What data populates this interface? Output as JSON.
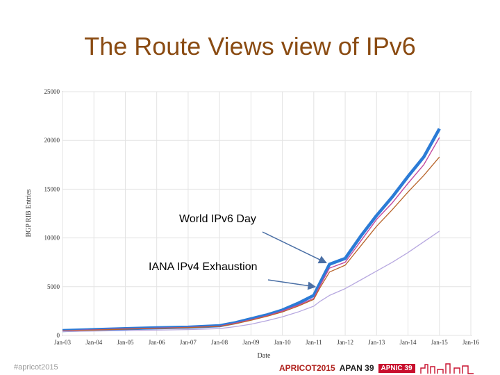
{
  "slide": {
    "title": "The Route Views view of IPv6",
    "footer_handle": "#apricot2015"
  },
  "logos": {
    "apricot": "APRICOT2015",
    "apan": "APAN 39",
    "apnic": "APNIC 39"
  },
  "colors": {
    "title": "#8a4b12",
    "arrow": "#4a6fa5",
    "main_band": "#2b7bd6",
    "low_series": "#b7a8e0"
  },
  "chart_data": {
    "type": "line",
    "title": "",
    "xlabel": "Date",
    "ylabel": "BGP RIB Entries",
    "ylim": [
      0,
      25000
    ],
    "xlim": [
      "2003-01",
      "2016-01"
    ],
    "yticks": [
      0,
      5000,
      10000,
      15000,
      20000,
      25000
    ],
    "xticks": [
      "Jan-03",
      "Jan-04",
      "Jan-05",
      "Jan-06",
      "Jan-07",
      "Jan-08",
      "Jan-09",
      "Jan-10",
      "Jan-11",
      "Jan-12",
      "Jan-13",
      "Jan-14",
      "Jan-15",
      "Jan-16"
    ],
    "grid": true,
    "x": [
      2003.0,
      2004.0,
      2005.0,
      2006.0,
      2007.0,
      2008.0,
      2008.5,
      2009.0,
      2009.5,
      2010.0,
      2010.5,
      2011.0,
      2011.2,
      2011.5,
      2012.0,
      2012.5,
      2013.0,
      2013.5,
      2014.0,
      2014.5,
      2015.0
    ],
    "series": [
      {
        "values": [
          500,
          600,
          700,
          780,
          850,
          1000,
          1300,
          1700,
          2100,
          2600,
          3300,
          4100,
          5400,
          7300,
          7900,
          10200,
          12300,
          14200,
          16300,
          18300,
          21200
        ]
      },
      {
        "values": [
          480,
          580,
          680,
          750,
          820,
          950,
          1250,
          1600,
          2000,
          2500,
          3100,
          3800,
          5100,
          6900,
          7500,
          9700,
          11900,
          13600,
          15600,
          17500,
          20300
        ]
      },
      {
        "values": [
          450,
          550,
          640,
          720,
          800,
          920,
          1200,
          1550,
          1950,
          2400,
          3000,
          3700,
          4900,
          6500,
          7200,
          9200,
          11200,
          12900,
          14700,
          16400,
          18300
        ]
      },
      {
        "values": [
          400,
          450,
          500,
          550,
          600,
          700,
          900,
          1150,
          1500,
          1900,
          2400,
          3000,
          3500,
          4100,
          4800,
          5700,
          6600,
          7500,
          8500,
          9600,
          10700
        ]
      }
    ],
    "annotations": [
      {
        "text": "World IPv6 Day",
        "x": 2011.45,
        "y": 7500
      },
      {
        "text": "IANA IPv4 Exhaustion",
        "x": 2011.1,
        "y": 5000
      }
    ]
  }
}
